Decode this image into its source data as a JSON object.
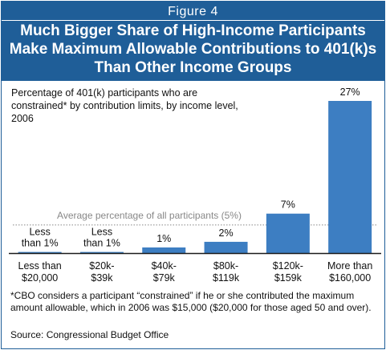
{
  "figure": {
    "label": "Figure 4",
    "title_lines": [
      "Much Bigger Share of High-Income Participants",
      "Make Maximum Allowable Contributions to 401(k)s",
      "Than Other Income Groups"
    ],
    "footnote": "*CBO considers a participant “constrained” if he or she contributed the maximum amount allowable, which in 2006 was $15,000 ($20,000 for those aged 50 and over).",
    "source": "Source: Congressional Budget Office",
    "colors": {
      "header": "#1f5e98",
      "bar": "#3d7ec2",
      "reference_line": "#888888"
    }
  },
  "chart_data": {
    "type": "bar",
    "subtitle": "Percentage of 401(k) participants who are constrained* by contribution limits, by income level, 2006",
    "categories": [
      "Less than $20,000",
      "$20k-$39k",
      "$40k-$79k",
      "$80k-$119k",
      "$120k-$159k",
      "More than $160,000"
    ],
    "category_lines": [
      [
        "Less than",
        "$20,000"
      ],
      [
        "$20k-",
        "$39k"
      ],
      [
        "$40k-",
        "$79k"
      ],
      [
        "$80k-",
        "$119k"
      ],
      [
        "$120k-",
        "$159k"
      ],
      [
        "More than",
        "$160,000"
      ]
    ],
    "values": [
      0.2,
      0.2,
      1,
      2,
      7,
      27
    ],
    "data_labels": [
      [
        "Less",
        "than 1%"
      ],
      [
        "Less",
        "than 1%"
      ],
      [
        "1%"
      ],
      [
        "2%"
      ],
      [
        "7%"
      ],
      [
        "27%"
      ]
    ],
    "reference_line": {
      "value": 5,
      "label": "Average percentage of all participants (5%)"
    },
    "ylim": [
      0,
      27
    ],
    "grid": false,
    "legend": "none"
  }
}
